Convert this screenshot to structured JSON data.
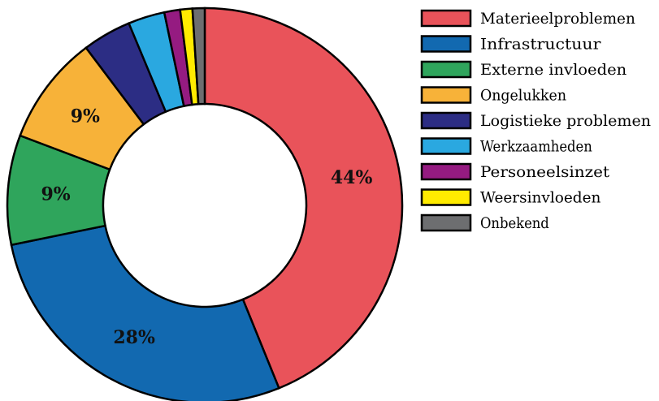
{
  "chart_data": {
    "type": "pie",
    "donut": true,
    "title": "",
    "legend_position": "right",
    "slices": [
      {
        "label": "Materieelproblemen",
        "value": 44,
        "data_label": "44%",
        "color": "#E9535A"
      },
      {
        "label": "Infrastructuur",
        "value": 28,
        "data_label": "28%",
        "color": "#1269B0"
      },
      {
        "label": "Externe invloeden",
        "value": 9,
        "data_label": "9%",
        "color": "#2FA55C"
      },
      {
        "label": "Ongelukken",
        "value": 9,
        "data_label": "9%",
        "color": "#F7B239"
      },
      {
        "label": "Logistieke problemen",
        "value": 4,
        "data_label": "",
        "color": "#2C2D84"
      },
      {
        "label": "Werkzaamheden",
        "value": 3,
        "data_label": "",
        "color": "#2AA8E0"
      },
      {
        "label": "Personeelsinzet",
        "value": 1.3,
        "data_label": "",
        "color": "#951B81"
      },
      {
        "label": "Weersinvloeden",
        "value": 1,
        "data_label": "",
        "color": "#FFEB00"
      },
      {
        "label": "Onbekend",
        "value": 1,
        "data_label": "",
        "color": "#6D6E70"
      }
    ]
  }
}
